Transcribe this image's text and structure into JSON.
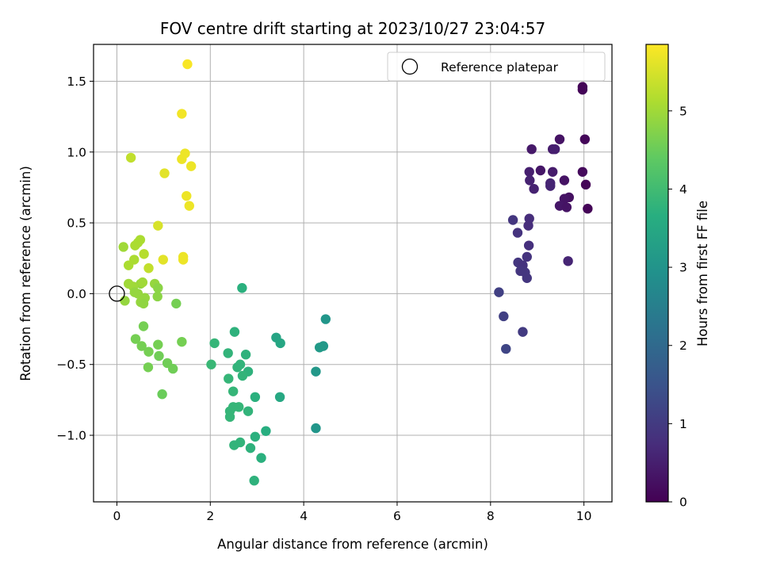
{
  "chart_data": {
    "type": "scatter",
    "title": "FOV centre drift starting at 2023/10/27 23:04:57",
    "xlabel": "Angular distance from reference (arcmin)",
    "ylabel": "Rotation from reference (arcmin)",
    "xlim": [
      -0.5,
      10.6
    ],
    "ylim": [
      -1.47,
      1.76
    ],
    "xticks": [
      0,
      2,
      4,
      6,
      8,
      10
    ],
    "xtick_labels": [
      "0",
      "2",
      "4",
      "6",
      "8",
      "10"
    ],
    "yticks": [
      -1.0,
      -0.5,
      0.0,
      0.5,
      1.0,
      1.5
    ],
    "ytick_labels": [
      "−1.0",
      "−0.5",
      "0.0",
      "0.5",
      "1.0",
      "1.5"
    ],
    "grid": true,
    "legend": {
      "position": "top-right",
      "entries": [
        "Reference platepar"
      ]
    },
    "reference_point": {
      "x": 0,
      "y": 0,
      "label": "Reference platepar"
    },
    "colorbar": {
      "label": "Hours from first FF file",
      "colormap": "viridis",
      "range": [
        0,
        5.85
      ],
      "ticks": [
        0,
        1,
        2,
        3,
        4,
        5
      ],
      "tick_labels": [
        "0",
        "1",
        "2",
        "3",
        "4",
        "5"
      ]
    },
    "points": [
      {
        "x": 9.97,
        "y": 1.46,
        "c": 0.05
      },
      {
        "x": 9.97,
        "y": 1.44,
        "c": 0.08
      },
      {
        "x": 10.02,
        "y": 1.09,
        "c": 0.1
      },
      {
        "x": 9.48,
        "y": 1.09,
        "c": 0.3
      },
      {
        "x": 8.88,
        "y": 1.02,
        "c": 0.4
      },
      {
        "x": 9.33,
        "y": 1.02,
        "c": 0.45
      },
      {
        "x": 9.38,
        "y": 1.02,
        "c": 0.5
      },
      {
        "x": 9.97,
        "y": 0.86,
        "c": 0.15
      },
      {
        "x": 9.07,
        "y": 0.87,
        "c": 0.35
      },
      {
        "x": 8.83,
        "y": 0.86,
        "c": 0.5
      },
      {
        "x": 9.33,
        "y": 0.86,
        "c": 0.45
      },
      {
        "x": 8.84,
        "y": 0.8,
        "c": 0.55
      },
      {
        "x": 9.58,
        "y": 0.8,
        "c": 0.3
      },
      {
        "x": 10.04,
        "y": 0.77,
        "c": 0.05
      },
      {
        "x": 9.28,
        "y": 0.78,
        "c": 0.6
      },
      {
        "x": 9.28,
        "y": 0.76,
        "c": 0.6
      },
      {
        "x": 8.93,
        "y": 0.74,
        "c": 0.55
      },
      {
        "x": 9.68,
        "y": 0.68,
        "c": 0.25
      },
      {
        "x": 9.58,
        "y": 0.67,
        "c": 0.3
      },
      {
        "x": 9.48,
        "y": 0.62,
        "c": 0.35
      },
      {
        "x": 9.63,
        "y": 0.61,
        "c": 0.3
      },
      {
        "x": 10.08,
        "y": 0.6,
        "c": 0.05
      },
      {
        "x": 8.48,
        "y": 0.52,
        "c": 0.9
      },
      {
        "x": 8.83,
        "y": 0.53,
        "c": 0.75
      },
      {
        "x": 8.81,
        "y": 0.48,
        "c": 0.75
      },
      {
        "x": 8.58,
        "y": 0.43,
        "c": 0.85
      },
      {
        "x": 8.82,
        "y": 0.34,
        "c": 0.8
      },
      {
        "x": 8.78,
        "y": 0.26,
        "c": 0.85
      },
      {
        "x": 8.59,
        "y": 0.22,
        "c": 0.9
      },
      {
        "x": 9.66,
        "y": 0.23,
        "c": 0.6
      },
      {
        "x": 8.69,
        "y": 0.2,
        "c": 0.85
      },
      {
        "x": 8.64,
        "y": 0.16,
        "c": 0.9
      },
      {
        "x": 8.74,
        "y": 0.15,
        "c": 0.9
      },
      {
        "x": 8.78,
        "y": 0.11,
        "c": 0.9
      },
      {
        "x": 8.18,
        "y": 0.01,
        "c": 1.1
      },
      {
        "x": 8.28,
        "y": -0.16,
        "c": 1.1
      },
      {
        "x": 8.69,
        "y": -0.27,
        "c": 1.0
      },
      {
        "x": 8.33,
        "y": -0.39,
        "c": 1.2
      },
      {
        "x": 4.47,
        "y": -0.18,
        "c": 3.05
      },
      {
        "x": 4.42,
        "y": -0.37,
        "c": 3.1
      },
      {
        "x": 4.34,
        "y": -0.38,
        "c": 3.15
      },
      {
        "x": 4.26,
        "y": -0.55,
        "c": 3.1
      },
      {
        "x": 4.26,
        "y": -0.95,
        "c": 3.05
      },
      {
        "x": 3.41,
        "y": -0.31,
        "c": 3.4
      },
      {
        "x": 3.5,
        "y": -0.35,
        "c": 3.45
      },
      {
        "x": 3.49,
        "y": -0.73,
        "c": 3.5
      },
      {
        "x": 2.68,
        "y": 0.04,
        "c": 3.7
      },
      {
        "x": 2.52,
        "y": -0.27,
        "c": 3.75
      },
      {
        "x": 2.09,
        "y": -0.35,
        "c": 3.85
      },
      {
        "x": 2.38,
        "y": -0.42,
        "c": 3.8
      },
      {
        "x": 2.76,
        "y": -0.43,
        "c": 3.75
      },
      {
        "x": 2.02,
        "y": -0.5,
        "c": 3.9
      },
      {
        "x": 2.64,
        "y": -0.5,
        "c": 3.8
      },
      {
        "x": 2.58,
        "y": -0.52,
        "c": 3.8
      },
      {
        "x": 2.81,
        "y": -0.55,
        "c": 3.75
      },
      {
        "x": 2.69,
        "y": -0.58,
        "c": 3.8
      },
      {
        "x": 2.39,
        "y": -0.6,
        "c": 3.85
      },
      {
        "x": 2.49,
        "y": -0.69,
        "c": 3.85
      },
      {
        "x": 2.96,
        "y": -0.73,
        "c": 3.7
      },
      {
        "x": 2.49,
        "y": -0.8,
        "c": 3.85
      },
      {
        "x": 2.61,
        "y": -0.8,
        "c": 3.85
      },
      {
        "x": 2.42,
        "y": -0.83,
        "c": 3.85
      },
      {
        "x": 2.81,
        "y": -0.83,
        "c": 3.8
      },
      {
        "x": 2.42,
        "y": -0.87,
        "c": 3.85
      },
      {
        "x": 3.19,
        "y": -0.97,
        "c": 3.65
      },
      {
        "x": 2.96,
        "y": -1.01,
        "c": 3.7
      },
      {
        "x": 2.64,
        "y": -1.05,
        "c": 3.8
      },
      {
        "x": 2.51,
        "y": -1.07,
        "c": 3.8
      },
      {
        "x": 2.86,
        "y": -1.09,
        "c": 3.75
      },
      {
        "x": 3.09,
        "y": -1.16,
        "c": 3.7
      },
      {
        "x": 2.94,
        "y": -1.32,
        "c": 3.75
      },
      {
        "x": 1.51,
        "y": 1.62,
        "c": 5.8
      },
      {
        "x": 1.39,
        "y": 1.27,
        "c": 5.75
      },
      {
        "x": 1.46,
        "y": 0.99,
        "c": 5.7
      },
      {
        "x": 0.3,
        "y": 0.96,
        "c": 5.3
      },
      {
        "x": 1.39,
        "y": 0.95,
        "c": 5.7
      },
      {
        "x": 1.59,
        "y": 0.9,
        "c": 5.7
      },
      {
        "x": 1.02,
        "y": 0.85,
        "c": 5.6
      },
      {
        "x": 1.49,
        "y": 0.69,
        "c": 5.7
      },
      {
        "x": 1.55,
        "y": 0.62,
        "c": 5.7
      },
      {
        "x": 0.88,
        "y": 0.48,
        "c": 5.5
      },
      {
        "x": 0.5,
        "y": 0.38,
        "c": 5.1
      },
      {
        "x": 0.45,
        "y": 0.36,
        "c": 5.1
      },
      {
        "x": 0.14,
        "y": 0.33,
        "c": 5.0
      },
      {
        "x": 0.39,
        "y": 0.34,
        "c": 5.1
      },
      {
        "x": 0.58,
        "y": 0.28,
        "c": 5.2
      },
      {
        "x": 1.42,
        "y": 0.26,
        "c": 5.7
      },
      {
        "x": 1.42,
        "y": 0.24,
        "c": 5.7
      },
      {
        "x": 0.99,
        "y": 0.24,
        "c": 5.6
      },
      {
        "x": 0.37,
        "y": 0.24,
        "c": 5.1
      },
      {
        "x": 0.25,
        "y": 0.2,
        "c": 5.1
      },
      {
        "x": 0.68,
        "y": 0.18,
        "c": 5.3
      },
      {
        "x": 0.25,
        "y": 0.07,
        "c": 5.0
      },
      {
        "x": 0.51,
        "y": 0.07,
        "c": 4.9
      },
      {
        "x": 0.55,
        "y": 0.08,
        "c": 5.0
      },
      {
        "x": 0.81,
        "y": 0.07,
        "c": 4.9
      },
      {
        "x": 0.35,
        "y": 0.05,
        "c": 5.0
      },
      {
        "x": 0.88,
        "y": 0.04,
        "c": 4.8
      },
      {
        "x": 0.38,
        "y": 0.01,
        "c": 4.9
      },
      {
        "x": 0.45,
        "y": 0.0,
        "c": 4.9
      },
      {
        "x": 0.87,
        "y": -0.02,
        "c": 4.8
      },
      {
        "x": 0.6,
        "y": -0.03,
        "c": 4.9
      },
      {
        "x": 0.17,
        "y": -0.05,
        "c": 4.9
      },
      {
        "x": 0.51,
        "y": -0.06,
        "c": 4.9
      },
      {
        "x": 0.57,
        "y": -0.07,
        "c": 4.85
      },
      {
        "x": 1.27,
        "y": -0.07,
        "c": 4.6
      },
      {
        "x": 0.57,
        "y": -0.23,
        "c": 4.6
      },
      {
        "x": 0.4,
        "y": -0.32,
        "c": 4.6
      },
      {
        "x": 1.39,
        "y": -0.34,
        "c": 4.6
      },
      {
        "x": 0.53,
        "y": -0.37,
        "c": 4.6
      },
      {
        "x": 0.88,
        "y": -0.36,
        "c": 4.6
      },
      {
        "x": 0.68,
        "y": -0.41,
        "c": 4.6
      },
      {
        "x": 0.9,
        "y": -0.44,
        "c": 4.55
      },
      {
        "x": 1.08,
        "y": -0.49,
        "c": 4.55
      },
      {
        "x": 0.67,
        "y": -0.52,
        "c": 4.6
      },
      {
        "x": 1.2,
        "y": -0.53,
        "c": 4.55
      },
      {
        "x": 0.97,
        "y": -0.71,
        "c": 4.5
      }
    ]
  }
}
